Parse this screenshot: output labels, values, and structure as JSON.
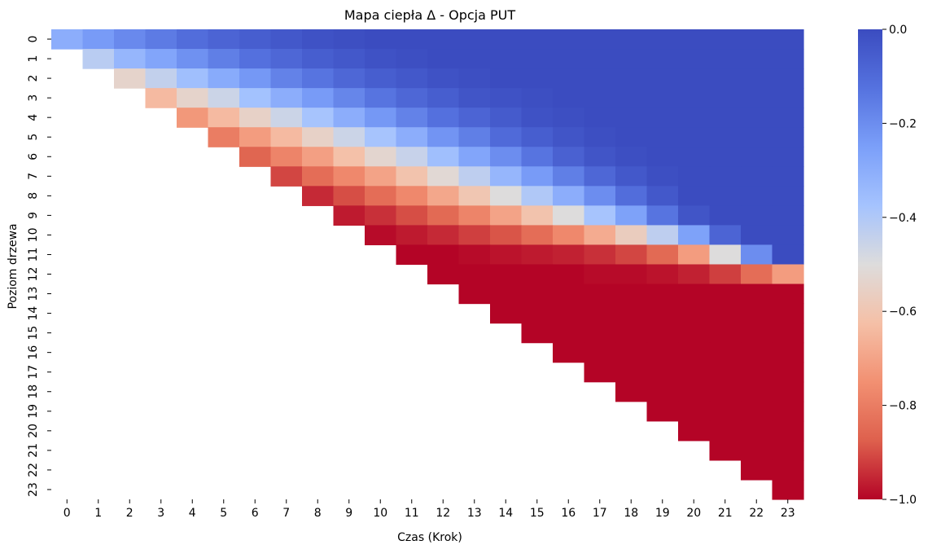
{
  "chart_data": {
    "type": "heatmap",
    "title": "Mapa ciepła Δ - Opcja PUT",
    "xlabel": "Czas (Krok)",
    "ylabel": "Poziom drzewa",
    "x_categories": [
      "0",
      "1",
      "2",
      "3",
      "4",
      "5",
      "6",
      "7",
      "8",
      "9",
      "10",
      "11",
      "12",
      "13",
      "14",
      "15",
      "16",
      "17",
      "18",
      "19",
      "20",
      "21",
      "22",
      "23"
    ],
    "y_categories": [
      "0",
      "1",
      "2",
      "3",
      "4",
      "5",
      "6",
      "7",
      "8",
      "9",
      "10",
      "11",
      "12",
      "13",
      "14",
      "15",
      "16",
      "17",
      "18",
      "19",
      "20",
      "21",
      "22",
      "23"
    ],
    "y_tick_labels_visible": [
      "0",
      "1",
      "2",
      "3",
      "4",
      "5",
      "6",
      "7",
      "8",
      "9",
      "10",
      "11",
      "12",
      "13",
      "14",
      "15",
      "16",
      "17",
      "18",
      "19",
      "20",
      "21",
      "22",
      "23"
    ],
    "colormap": "coolwarm",
    "vmin": -1.0,
    "vmax": 0.0,
    "colorbar_ticks": [
      "0.0",
      "−0.2",
      "−0.4",
      "−0.6",
      "−0.8",
      "−1.0"
    ],
    "colorbar_values": [
      0.0,
      -0.2,
      -0.4,
      -0.6,
      -0.8,
      -1.0
    ],
    "colors": {
      "low": "#b40426",
      "mid": "#dddddd",
      "high": "#3b4cc0"
    },
    "values_note": "row i = tree level, column j = time step; cells with i > j are empty",
    "values": [
      [
        -0.3,
        -0.24,
        -0.19,
        -0.15,
        -0.11,
        -0.08,
        -0.06,
        -0.04,
        -0.02,
        -0.01,
        0,
        0,
        0,
        0,
        0,
        0,
        0,
        0,
        0,
        0,
        0,
        0,
        0,
        0
      ],
      [
        null,
        -0.42,
        -0.33,
        -0.27,
        -0.21,
        -0.16,
        -0.12,
        -0.09,
        -0.06,
        -0.04,
        -0.02,
        -0.01,
        0,
        0,
        0,
        0,
        0,
        0,
        0,
        0,
        0,
        0,
        0,
        0
      ],
      [
        null,
        null,
        -0.54,
        -0.44,
        -0.36,
        -0.29,
        -0.23,
        -0.17,
        -0.13,
        -0.09,
        -0.06,
        -0.04,
        -0.02,
        -0.01,
        0,
        0,
        0,
        0,
        0,
        0,
        0,
        0,
        0,
        0
      ],
      [
        null,
        null,
        null,
        -0.64,
        -0.54,
        -0.46,
        -0.37,
        -0.3,
        -0.24,
        -0.18,
        -0.13,
        -0.09,
        -0.06,
        -0.03,
        -0.02,
        -0.01,
        0,
        0,
        0,
        0,
        0,
        0,
        0,
        0
      ],
      [
        null,
        null,
        null,
        null,
        -0.73,
        -0.64,
        -0.55,
        -0.46,
        -0.38,
        -0.3,
        -0.23,
        -0.17,
        -0.12,
        -0.08,
        -0.05,
        -0.02,
        -0.01,
        0,
        0,
        0,
        0,
        0,
        0,
        0
      ],
      [
        null,
        null,
        null,
        null,
        null,
        -0.8,
        -0.72,
        -0.64,
        -0.55,
        -0.46,
        -0.38,
        -0.3,
        -0.22,
        -0.16,
        -0.1,
        -0.06,
        -0.03,
        -0.01,
        0,
        0,
        0,
        0,
        0,
        0
      ],
      [
        null,
        null,
        null,
        null,
        null,
        null,
        -0.86,
        -0.78,
        -0.71,
        -0.62,
        -0.53,
        -0.45,
        -0.36,
        -0.27,
        -0.2,
        -0.13,
        -0.07,
        -0.03,
        -0.01,
        0,
        0,
        0,
        0,
        0
      ],
      [
        null,
        null,
        null,
        null,
        null,
        null,
        null,
        -0.91,
        -0.84,
        -0.77,
        -0.7,
        -0.61,
        -0.52,
        -0.43,
        -0.33,
        -0.24,
        -0.16,
        -0.09,
        -0.04,
        -0.01,
        0,
        0,
        0,
        0
      ],
      [
        null,
        null,
        null,
        null,
        null,
        null,
        null,
        null,
        -0.95,
        -0.9,
        -0.84,
        -0.77,
        -0.69,
        -0.6,
        -0.5,
        -0.4,
        -0.3,
        -0.2,
        -0.11,
        -0.04,
        0,
        0,
        0,
        0
      ],
      [
        null,
        null,
        null,
        null,
        null,
        null,
        null,
        null,
        null,
        -0.97,
        -0.94,
        -0.9,
        -0.85,
        -0.78,
        -0.7,
        -0.61,
        -0.5,
        -0.38,
        -0.26,
        -0.13,
        -0.03,
        0,
        0,
        0
      ],
      [
        null,
        null,
        null,
        null,
        null,
        null,
        null,
        null,
        null,
        null,
        -0.99,
        -0.97,
        -0.95,
        -0.92,
        -0.89,
        -0.84,
        -0.77,
        -0.68,
        -0.57,
        -0.43,
        -0.26,
        -0.08,
        0,
        0
      ],
      [
        null,
        null,
        null,
        null,
        null,
        null,
        null,
        null,
        null,
        null,
        null,
        -1.0,
        -1.0,
        -0.99,
        -0.98,
        -0.97,
        -0.96,
        -0.94,
        -0.91,
        -0.85,
        -0.72,
        -0.5,
        -0.2,
        0
      ],
      [
        null,
        null,
        null,
        null,
        null,
        null,
        null,
        null,
        null,
        null,
        null,
        null,
        -1.0,
        -1.0,
        -1.0,
        -1.0,
        -1.0,
        -0.99,
        -0.99,
        -0.98,
        -0.96,
        -0.92,
        -0.84,
        -0.72
      ],
      [
        null,
        null,
        null,
        null,
        null,
        null,
        null,
        null,
        null,
        null,
        null,
        null,
        null,
        -1.0,
        -1.0,
        -1.0,
        -1.0,
        -1.0,
        -1.0,
        -1.0,
        -1.0,
        -1.0,
        -1.0,
        -1.0
      ],
      [
        null,
        null,
        null,
        null,
        null,
        null,
        null,
        null,
        null,
        null,
        null,
        null,
        null,
        null,
        -1.0,
        -1.0,
        -1.0,
        -1.0,
        -1.0,
        -1.0,
        -1.0,
        -1.0,
        -1.0,
        -1.0
      ],
      [
        null,
        null,
        null,
        null,
        null,
        null,
        null,
        null,
        null,
        null,
        null,
        null,
        null,
        null,
        null,
        -1.0,
        -1.0,
        -1.0,
        -1.0,
        -1.0,
        -1.0,
        -1.0,
        -1.0,
        -1.0
      ],
      [
        null,
        null,
        null,
        null,
        null,
        null,
        null,
        null,
        null,
        null,
        null,
        null,
        null,
        null,
        null,
        null,
        -1.0,
        -1.0,
        -1.0,
        -1.0,
        -1.0,
        -1.0,
        -1.0,
        -1.0
      ],
      [
        null,
        null,
        null,
        null,
        null,
        null,
        null,
        null,
        null,
        null,
        null,
        null,
        null,
        null,
        null,
        null,
        null,
        -1.0,
        -1.0,
        -1.0,
        -1.0,
        -1.0,
        -1.0,
        -1.0
      ],
      [
        null,
        null,
        null,
        null,
        null,
        null,
        null,
        null,
        null,
        null,
        null,
        null,
        null,
        null,
        null,
        null,
        null,
        null,
        -1.0,
        -1.0,
        -1.0,
        -1.0,
        -1.0,
        -1.0
      ],
      [
        null,
        null,
        null,
        null,
        null,
        null,
        null,
        null,
        null,
        null,
        null,
        null,
        null,
        null,
        null,
        null,
        null,
        null,
        null,
        -1.0,
        -1.0,
        -1.0,
        -1.0,
        -1.0
      ],
      [
        null,
        null,
        null,
        null,
        null,
        null,
        null,
        null,
        null,
        null,
        null,
        null,
        null,
        null,
        null,
        null,
        null,
        null,
        null,
        null,
        -1.0,
        -1.0,
        -1.0,
        -1.0
      ],
      [
        null,
        null,
        null,
        null,
        null,
        null,
        null,
        null,
        null,
        null,
        null,
        null,
        null,
        null,
        null,
        null,
        null,
        null,
        null,
        null,
        null,
        -1.0,
        -1.0,
        -1.0
      ],
      [
        null,
        null,
        null,
        null,
        null,
        null,
        null,
        null,
        null,
        null,
        null,
        null,
        null,
        null,
        null,
        null,
        null,
        null,
        null,
        null,
        null,
        null,
        -1.0,
        -1.0
      ],
      [
        null,
        null,
        null,
        null,
        null,
        null,
        null,
        null,
        null,
        null,
        null,
        null,
        null,
        null,
        null,
        null,
        null,
        null,
        null,
        null,
        null,
        null,
        null,
        -1.0
      ]
    ]
  }
}
